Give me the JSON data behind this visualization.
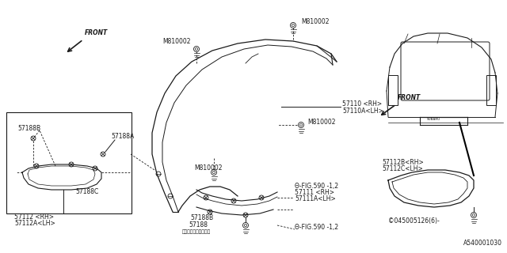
{
  "bg_color": "#ffffff",
  "line_color": "#1a1a1a",
  "watermark": "A540001030",
  "labels": {
    "M810002": "M810002",
    "57110_rh": "57110 <RH>",
    "57110_lh": "57110A<LH>",
    "57112_rh": "57112 <RH>",
    "57112_lh": "57112A<LH>",
    "57112B_rh": "57112B<RH>",
    "57112C_lh": "57112C<LH>",
    "57111_rh": "57111 <RH>",
    "57111_lh": "57111A<LH>",
    "fig590_1": "Θ-FIG.590 -1,2",
    "fig590_2": "Θ-FIG.590 -1,2",
    "57188A": "57188A",
    "57188B": "57188B",
    "57188C": "57188C",
    "57188": "57188",
    "57188_note": "（クリップ取り付け）",
    "screw": "©045005126(6)-",
    "front1": "FRONT",
    "front2": "FRONT"
  }
}
